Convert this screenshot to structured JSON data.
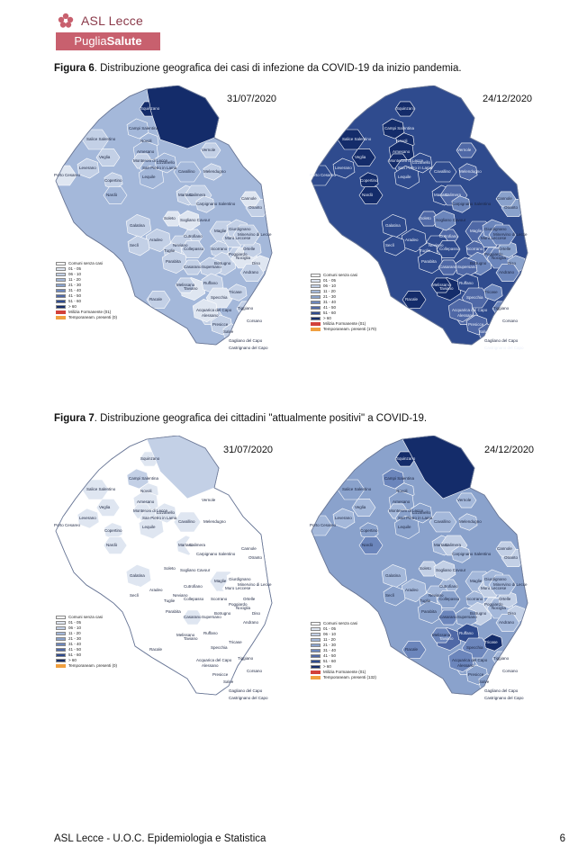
{
  "header": {
    "org_name": "ASL Lecce",
    "brand_band": {
      "part1": "Puglia",
      "part2": "Salute"
    }
  },
  "figure6": {
    "caption_label": "Figura 6",
    "caption_text": ". Distribuzione  geografica dei  casi di infezione  da  COVID-19 da inizio pandemia.",
    "left_date": "31/07/2020",
    "right_date": "24/12/2020"
  },
  "figure7": {
    "caption_label": "Figura 7",
    "caption_text": ". Distribuzione  geografica dei cittadini \"attualmente positivi\" a COVID-19.",
    "left_date": "31/07/2020",
    "right_date": "24/12/2020"
  },
  "legend": {
    "title": "Comuni senza casi",
    "classes": [
      "01 - 05",
      "06 - 10",
      "11 - 20",
      "21 - 30",
      "31 - 40",
      "41 - 50",
      "51 - 60",
      "> 60"
    ],
    "colors": [
      "#ffffff",
      "#dfe6f1",
      "#c3d0e6",
      "#a4b8da",
      "#8aa2cc",
      "#6c86bc",
      "#4f68a6",
      "#2f4b8e",
      "#142c6a"
    ],
    "extra_items": [
      {
        "label": "Milizia Formanente (01)",
        "color": "#d2413a"
      },
      {
        "label": "Temporaneam. presenti (0)",
        "color": "#f0a040"
      }
    ],
    "extra_items_right": [
      {
        "label": "Milizia Formanente (01)",
        "color": "#d2413a"
      },
      {
        "label": "Temporaneam. presenti (170)",
        "color": "#f0a040"
      }
    ],
    "extra_items_fig7_left": [
      {
        "label": "Temporaneam. presenti (0)",
        "color": "#f0a040"
      }
    ],
    "extra_items_fig7_right": [
      {
        "label": "Milizia Formanente (01)",
        "color": "#d2413a"
      },
      {
        "label": "Temporaneam. presenti (132)",
        "color": "#f0a040"
      }
    ]
  },
  "towns": [
    "Squinzano",
    "Campi Salentina",
    "Salice Salentino",
    "Novoli",
    "Veglia",
    "Arnesano",
    "Monteroni di Lecce",
    "Leverano",
    "Porto Cesareo",
    "Copertino",
    "San Pietro in Lama",
    "Lequile",
    "Vernole",
    "Lizzanello",
    "Cavallino",
    "Melendugno",
    "Nardò",
    "Galatina",
    "Soleto",
    "Martano",
    "Calimera",
    "Carpignano Salentino",
    "Otranto",
    "Aradeo",
    "Cutrofiano",
    "Sogliano Cavour",
    "Maglie",
    "Scorrano",
    "Muro Leccese",
    "Botrugno",
    "Poggiardo",
    "Seclì",
    "Neviano",
    "Tuglie",
    "Collepasso",
    "Parabita",
    "Casarano",
    "Supersano",
    "Nociglia",
    "Ortelle",
    "Racale",
    "Taviano",
    "Melissano",
    "Ruffano",
    "Specchia",
    "Tricase",
    "Alessano",
    "Acquarica del Capo",
    "Tiggiano",
    "Presicce",
    "Corsano",
    "Salve",
    "Gagliano del Capo",
    "Castrignano del Capo",
    "Cannole",
    "Giurdignano",
    "Minervino di Lecce",
    "Diso",
    "Andrano"
  ],
  "footer": {
    "left": "ASL Lecce - U.O.C. Epidemiologia e Statistica",
    "page_number": "6"
  }
}
